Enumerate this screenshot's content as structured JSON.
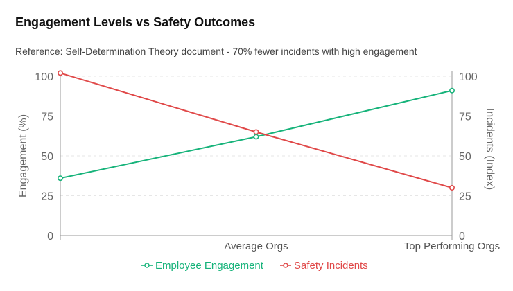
{
  "chart_data": {
    "type": "line",
    "title": "Engagement Levels vs Safety Outcomes",
    "subtitle": "Reference: Self-Determination Theory document - 70% fewer incidents with high engagement",
    "categories": [
      "",
      "Average Orgs",
      "Top Performing Orgs"
    ],
    "y_left": {
      "label": "Engagement (%)",
      "range": [
        0,
        100
      ],
      "ticks": [
        "0",
        "25",
        "50",
        "75",
        "100"
      ]
    },
    "y_right": {
      "label": "Incidents (Index)",
      "range": [
        0,
        100
      ],
      "ticks": [
        "0",
        "25",
        "50",
        "75",
        "100"
      ]
    },
    "series": [
      {
        "name": "Employee Engagement",
        "axis": "left",
        "color": "#16b37a",
        "values": [
          36,
          62,
          91
        ]
      },
      {
        "name": "Safety Incidents",
        "axis": "right",
        "color": "#e04848",
        "values": [
          102,
          65,
          30
        ]
      }
    ],
    "grid": true,
    "legend_position": "bottom"
  }
}
